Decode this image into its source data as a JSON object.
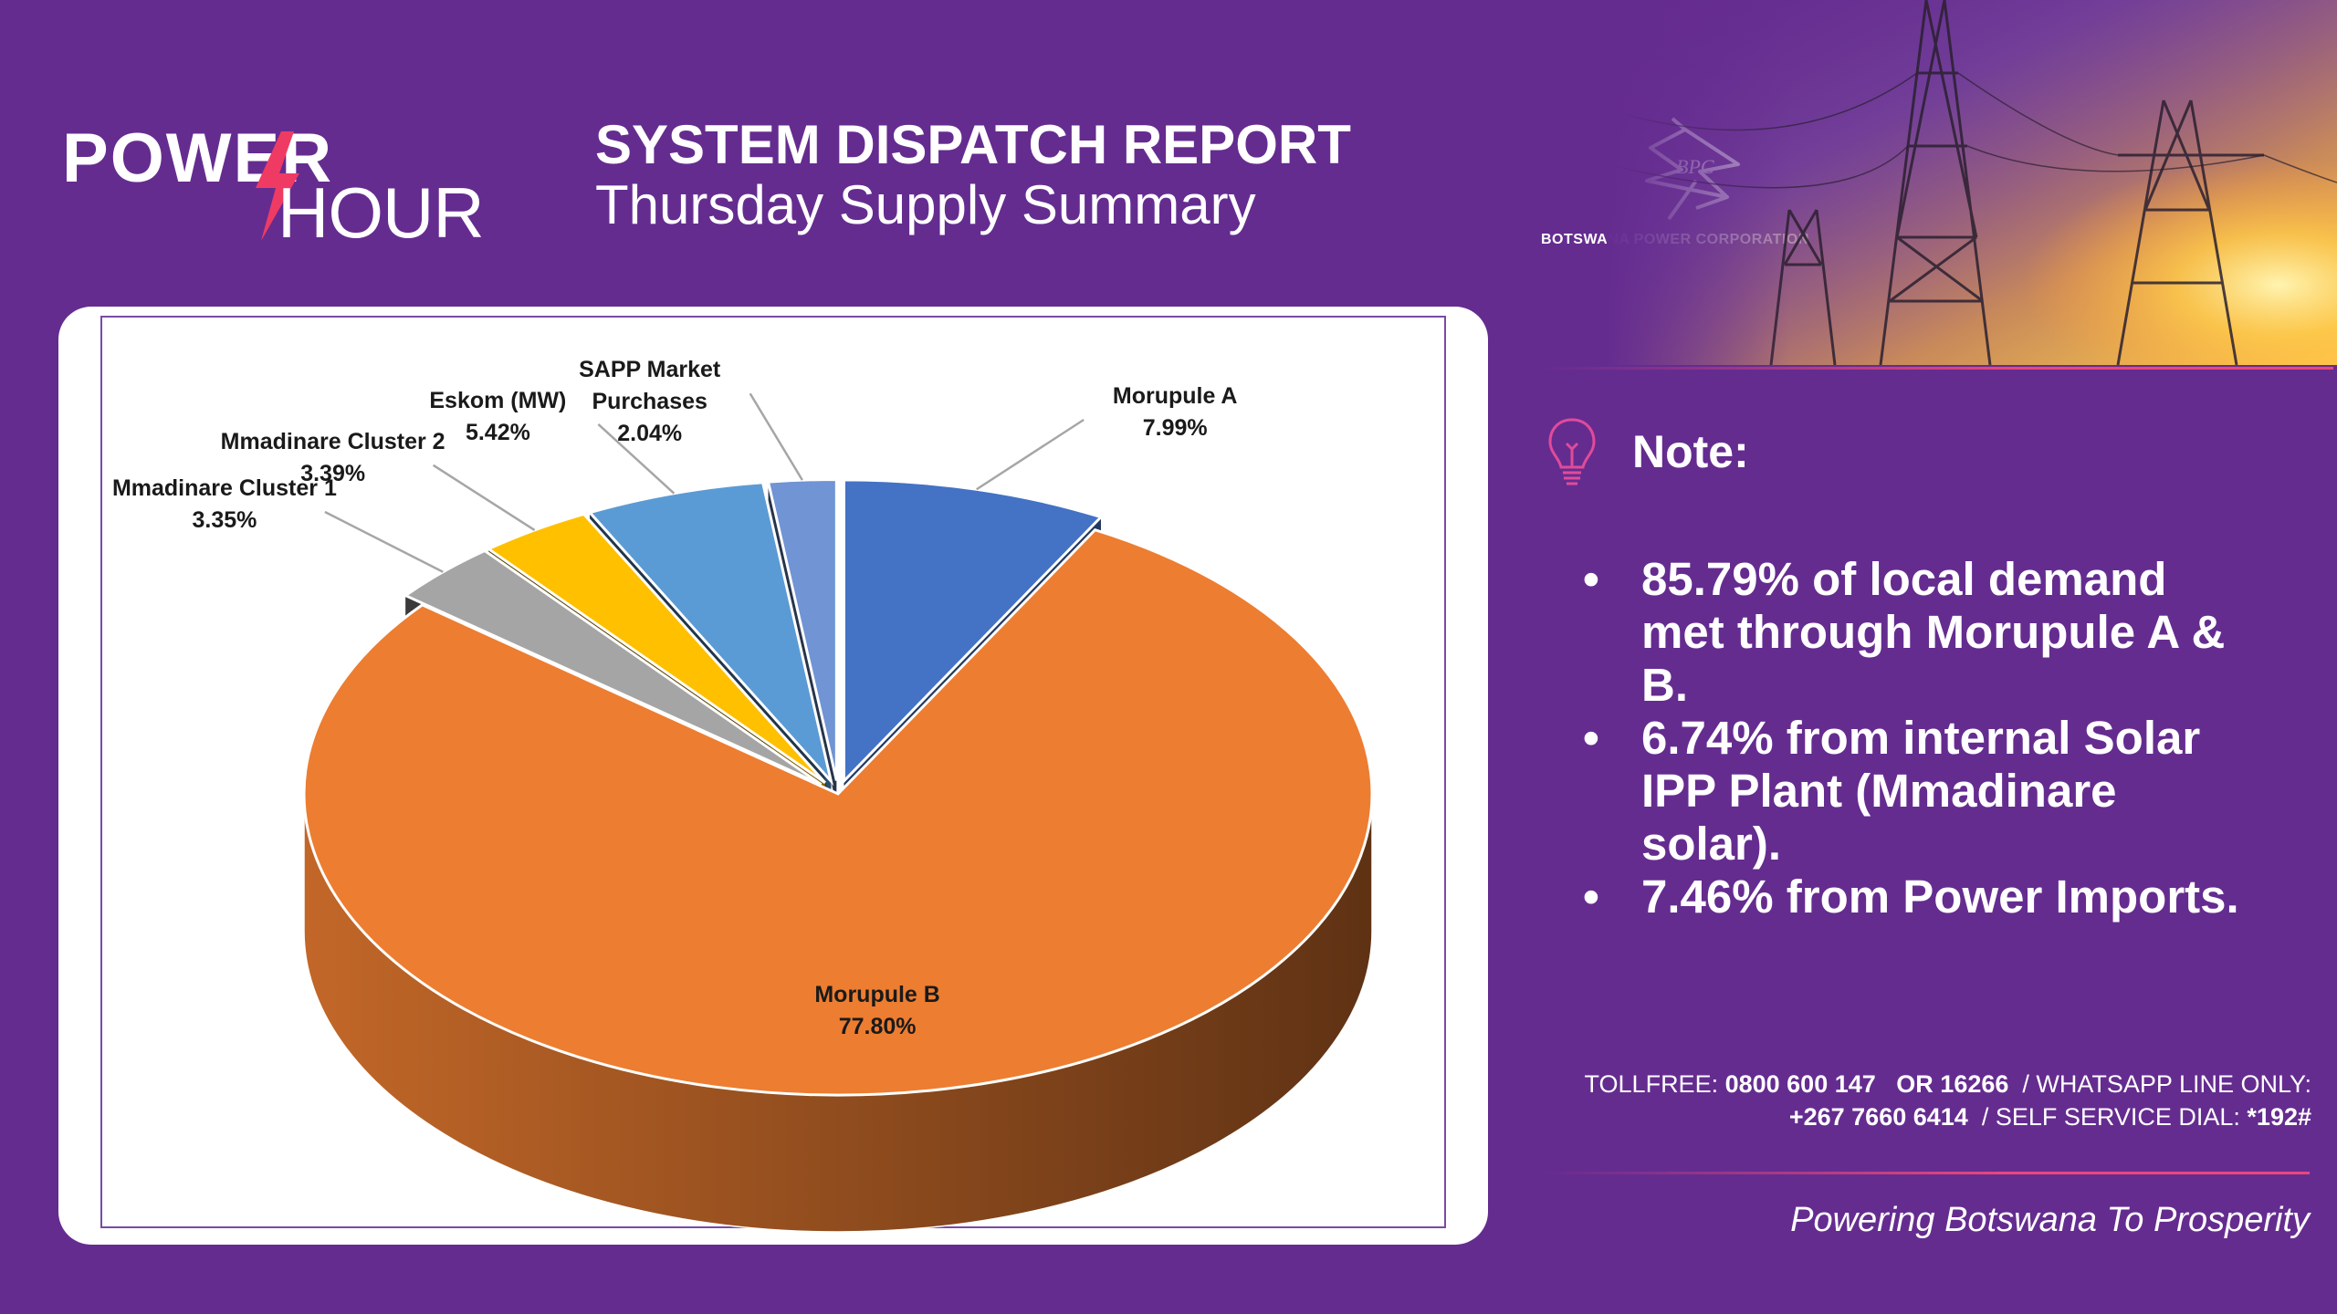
{
  "brand": {
    "logo_word1": "POWER",
    "logo_word2": "HOUR",
    "company": "BOTSWANA POWER CORPORATION"
  },
  "header": {
    "title": "SYSTEM DISPATCH REPORT",
    "subtitle": "Thursday Supply Summary"
  },
  "note": {
    "title": "Note:",
    "items": [
      "85.79% of local demand met through Morupule A & B.",
      "6.74% from internal Solar IPP Plant (Mmadinare solar).",
      "7.46% from Power Imports."
    ]
  },
  "contact": {
    "line1_prefix": "TOLLFREE: ",
    "tollfree1": "0800 600 147",
    "or": "OR",
    "tollfree2": "16266",
    "whatsapp_label": "/  WHATSAPP LINE ONLY:",
    "whatsapp": "+267 7660 6414",
    "self_service_label": "/  SELF SERVICE DIAL: ",
    "self_service": "*192#"
  },
  "tagline": "Powering Botswana To Prosperity",
  "colors": {
    "background": "#652c90",
    "accent": "#e8477c",
    "morupule_b": "#ed7d31",
    "morupule_a": "#4472c4",
    "sapp": "#7094d4",
    "eskom": "#5b9bd5",
    "cluster2": "#ffc000",
    "cluster1": "#a5a5a5"
  },
  "chart_data": {
    "type": "pie",
    "title": "",
    "three_d": true,
    "data_labels": "name and percent",
    "slices": [
      {
        "name": "Morupule A",
        "label_lines": [
          "Morupule A"
        ],
        "value": 7.99,
        "label": "7.99%",
        "color": "#4472c4"
      },
      {
        "name": "Morupule B",
        "label_lines": [
          "Morupule B"
        ],
        "value": 77.8,
        "label": "77.80%",
        "color": "#ed7d31"
      },
      {
        "name": "Mmadinare Cluster 1",
        "label_lines": [
          "Mmadinare Cluster 1"
        ],
        "value": 3.35,
        "label": "3.35%",
        "color": "#a5a5a5"
      },
      {
        "name": "Mmadinare Cluster 2",
        "label_lines": [
          "Mmadinare Cluster 2"
        ],
        "value": 3.39,
        "label": "3.39%",
        "color": "#ffc000"
      },
      {
        "name": "Eskom (MW)",
        "label_lines": [
          "Eskom (MW)"
        ],
        "value": 5.42,
        "label": "5.42%",
        "color": "#5b9bd5"
      },
      {
        "name": "SAPP Market Purchases",
        "label_lines": [
          "SAPP Market",
          "Purchases"
        ],
        "value": 2.04,
        "label": "2.04%",
        "color": "#7094d4"
      }
    ]
  }
}
